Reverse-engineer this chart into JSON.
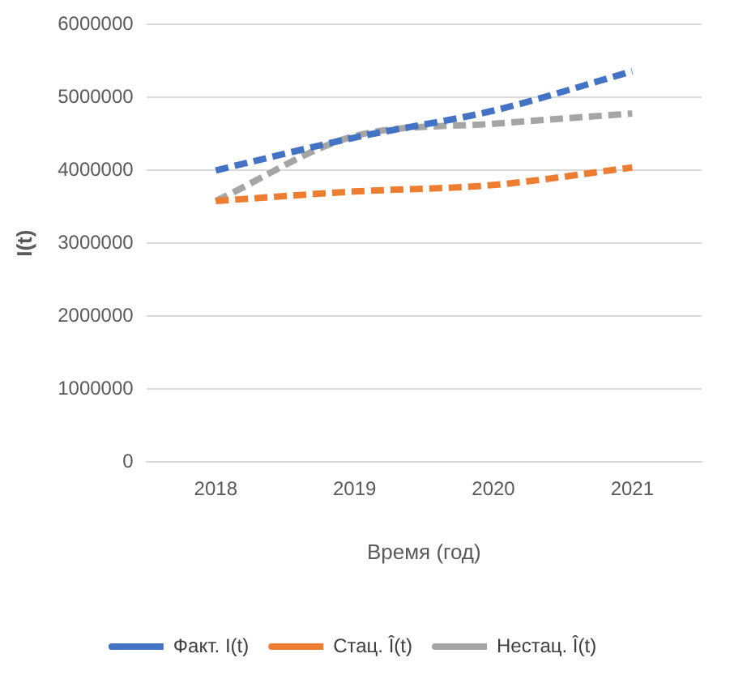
{
  "chart_data": {
    "type": "line",
    "xlabel": "Время (год)",
    "ylabel": "I(t)",
    "categories": [
      "2018",
      "2019",
      "2020",
      "2021"
    ],
    "series": [
      {
        "name": "Факт. I(t)",
        "color": "#4472c4",
        "values": [
          4000000,
          4450000,
          4820000,
          5360000
        ]
      },
      {
        "name": "Стац. Î(t)",
        "color": "#ed7d31",
        "values": [
          3580000,
          3710000,
          3800000,
          4040000
        ]
      },
      {
        "name": "Нестац. Î(t)",
        "color": "#a5a5a5",
        "values": [
          3580000,
          4470000,
          4640000,
          4780000
        ]
      }
    ],
    "ylim": [
      0,
      6000000
    ],
    "yticks": [
      0,
      1000000,
      2000000,
      3000000,
      4000000,
      5000000,
      6000000
    ],
    "grid": "y",
    "legend": "bottom",
    "line_style": "dashed",
    "marker": "none"
  }
}
